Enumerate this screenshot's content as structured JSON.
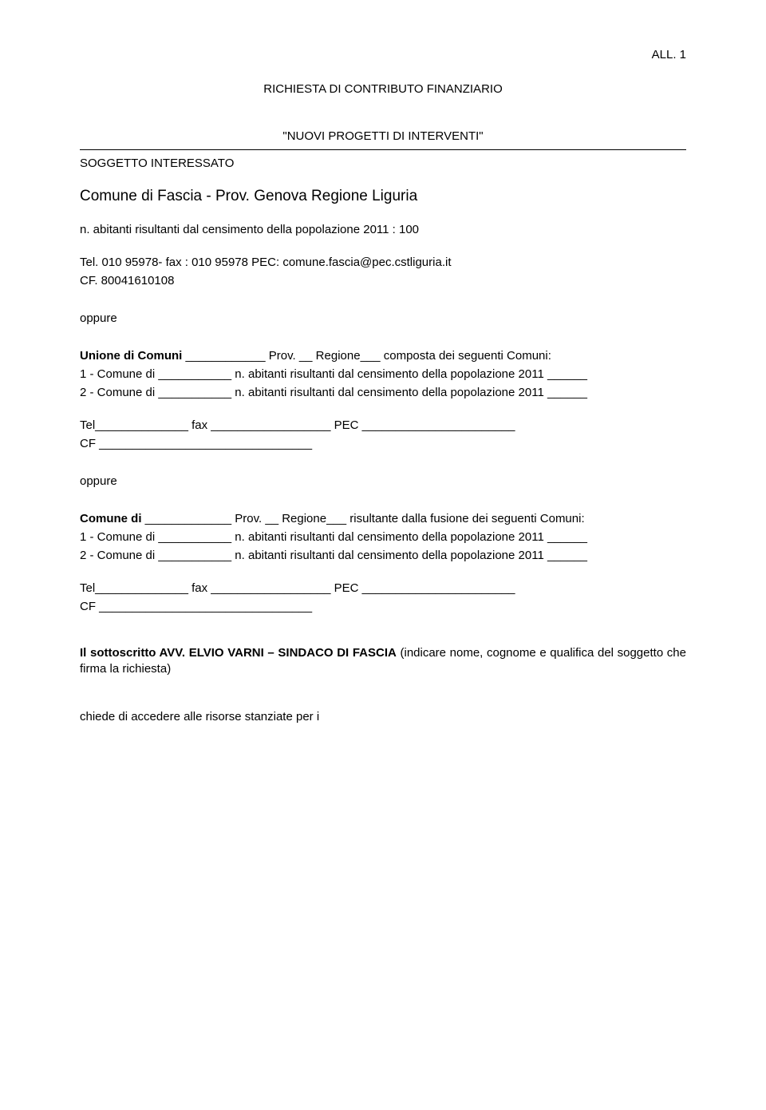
{
  "header": {
    "allegato": "ALL. 1"
  },
  "title": "RICHIESTA  DI  CONTRIBUTO FINANZIARIO",
  "subtitle": "\"NUOVI PROGETTI DI INTERVENTI\"",
  "soggetto_label": "SOGGETTO INTERESSATO",
  "comune_line": "Comune di Fascia  - Prov. Genova Regione Liguria",
  "abitanti_line": "n. abitanti risultanti dal censimento della popolazione 2011 : 100",
  "contact_line": "Tel. 010 95978- fax : 010 95978 PEC: comune.fascia@pec.cstliguria.it",
  "cf_line": "CF. 80041610108",
  "oppure": "oppure",
  "unione": {
    "line1_bold": "Unione di Comuni",
    "line1_rest": " ____________ Prov. __ Regione___ composta dei seguenti Comuni:",
    "line2": "1 - Comune di ___________ n. abitanti risultanti dal censimento della popolazione 2011 ______",
    "line3": "2 - Comune di ___________ n. abitanti risultanti dal censimento della popolazione 2011 ______"
  },
  "tel_fax_pec": "Tel______________ fax __________________ PEC _______________________",
  "cf_blank": "CF ________________________________",
  "fusione": {
    "line1_bold": "Comune di",
    "line1_rest": " _____________ Prov. __ Regione___ risultante dalla fusione dei seguenti Comuni:",
    "line2": "1 - Comune di ___________ n. abitanti risultanti dal censimento della popolazione 2011 ______",
    "line3": "2 - Comune di ___________ n. abitanti risultanti dal censimento della popolazione 2011 ______"
  },
  "sottoscritto": {
    "bold": "Il sottoscritto AVV. ELVIO VARNI – SINDACO DI FASCIA",
    "rest": " (indicare nome, cognome e qualifica del soggetto che firma la richiesta)"
  },
  "chiede": "chiede di accedere alle risorse stanziate per i"
}
